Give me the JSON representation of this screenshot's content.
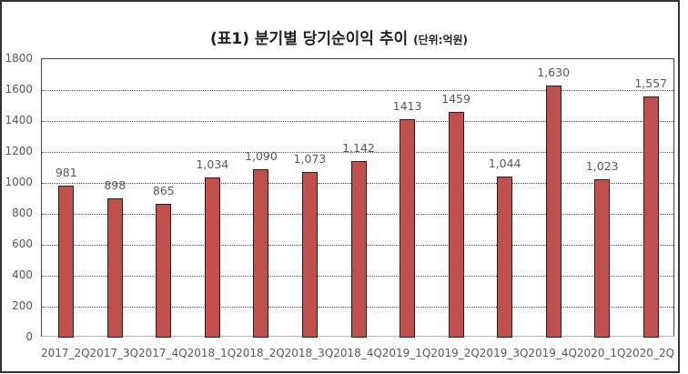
{
  "chart_data": {
    "type": "bar",
    "title": "(표1) 분기별 당기순이익 추이",
    "subtitle": "(단위:억원)",
    "xlabel": "",
    "ylabel": "",
    "ylim": [
      0,
      1800
    ],
    "yticks": [
      0,
      200,
      400,
      600,
      800,
      1000,
      1200,
      1400,
      1600,
      1800
    ],
    "grid": true,
    "legend": null,
    "bar_color": "#c0504d",
    "categories": [
      "2017_2Q",
      "2017_3Q",
      "2017_4Q",
      "2018_1Q",
      "2018_2Q",
      "2018_3Q",
      "2018_4Q",
      "2019_1Q",
      "2019_2Q",
      "2019_3Q",
      "2019_4Q",
      "2020_1Q",
      "2020_2Q"
    ],
    "values": [
      981,
      898,
      865,
      1034,
      1090,
      1073,
      1142,
      1413,
      1459,
      1044,
      1630,
      1023,
      1557
    ],
    "data_labels": [
      "981",
      "898",
      "865",
      "1,034",
      "1,090",
      "1,073",
      "1,142",
      "1413",
      "1459",
      "1,044",
      "1,630",
      "1,023",
      "1,557"
    ]
  }
}
